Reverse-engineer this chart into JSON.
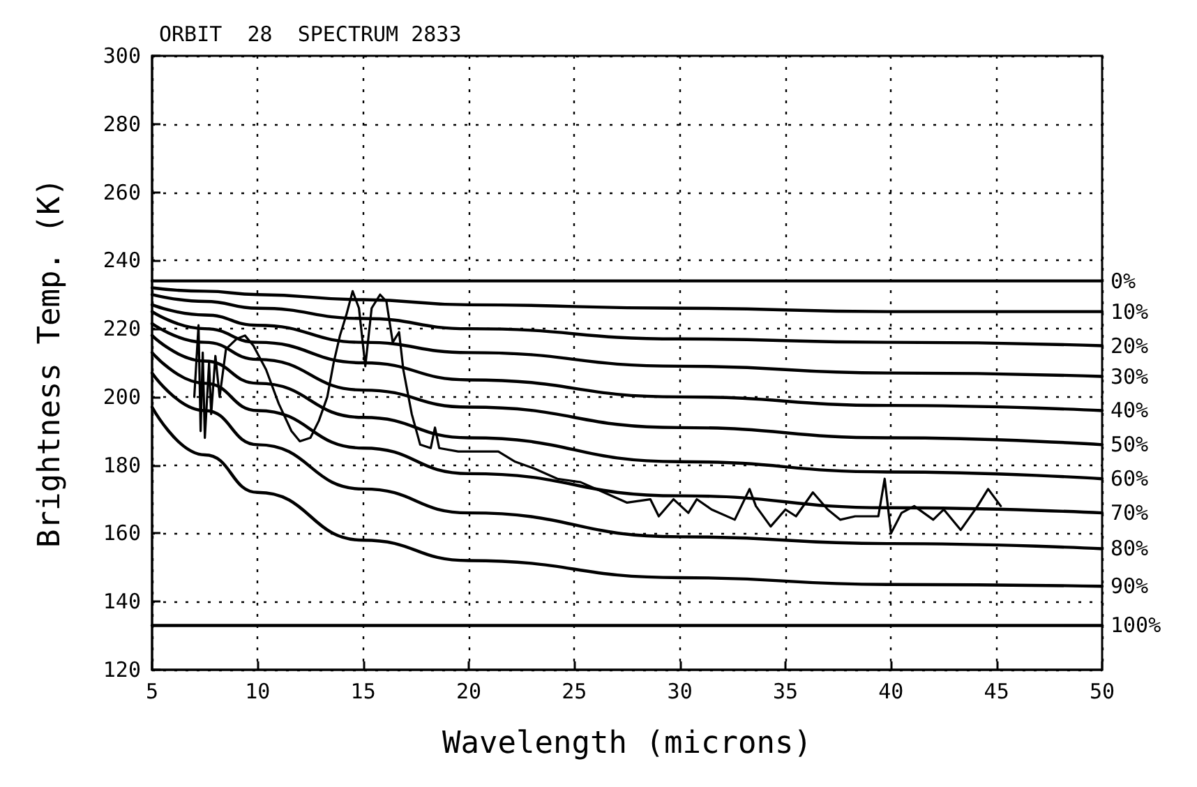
{
  "chart_data": {
    "type": "line",
    "title": "ORBIT  28  SPECTRUM 2833",
    "xlabel": "Wavelength (microns)",
    "ylabel": "Brightness Temp. (K)",
    "xlim": [
      5,
      50
    ],
    "xticks": [
      5,
      10,
      15,
      20,
      25,
      30,
      35,
      40,
      45,
      50
    ],
    "ylim": [
      120,
      300
    ],
    "yticks": [
      120,
      140,
      160,
      180,
      200,
      220,
      240,
      260,
      280,
      300
    ],
    "grid": true,
    "legend": false,
    "marker": "none",
    "line_style": "solid",
    "series": [
      {
        "color": "#000000",
        "x": [
          7.0,
          7.2,
          7.3,
          7.4,
          7.5,
          7.7,
          7.8,
          8.0,
          8.2,
          8.5,
          9.0,
          9.4,
          9.8,
          10.4,
          11.0,
          11.6,
          12.0,
          12.5,
          12.9,
          13.3,
          13.6,
          13.9,
          14.2,
          14.5,
          14.8,
          15.1,
          15.4,
          15.8,
          16.1,
          16.4,
          16.7,
          16.9,
          17.3,
          17.7,
          18.2,
          18.4,
          18.6,
          19.5,
          20.5,
          21.4,
          22.2,
          23.1,
          24.2,
          25.3,
          26.4,
          27.5,
          28.6,
          29.0,
          29.7,
          30.4,
          30.8,
          31.5,
          32.6,
          33.3,
          33.6,
          34.3,
          35.0,
          35.5,
          36.3,
          37.0,
          37.6,
          38.3,
          39.4,
          39.7,
          40.0,
          40.5,
          41.1,
          42.0,
          42.5,
          43.3,
          44.1,
          44.6,
          45.2
        ],
        "values": [
          200,
          221,
          190,
          213,
          188,
          210,
          195,
          212,
          200,
          214,
          217,
          218,
          215,
          208,
          198,
          190,
          187,
          188,
          193,
          200,
          210,
          218,
          224,
          231,
          226,
          209,
          226,
          230,
          228,
          216,
          219,
          208,
          195,
          186,
          185,
          191,
          185,
          184,
          184,
          184,
          181,
          179,
          176,
          175,
          172,
          169,
          170,
          165,
          170,
          166,
          170,
          167,
          164,
          173,
          168,
          162,
          167,
          165,
          172,
          167,
          164,
          165,
          165,
          176,
          160,
          166,
          168,
          164,
          167,
          161,
          168,
          173,
          168
        ]
      },
      {
        "name": "0%",
        "color": "#000000",
        "x": [
          5,
          50
        ],
        "values": [
          234,
          234
        ]
      },
      {
        "name": "10%",
        "color": "#000000",
        "x": [
          5,
          7.5,
          10,
          15,
          20,
          30,
          40,
          50
        ],
        "values": [
          232,
          231,
          230,
          228.5,
          227,
          226,
          225,
          225
        ]
      },
      {
        "name": "20%",
        "color": "#000000",
        "x": [
          5,
          7.5,
          10,
          15,
          20,
          30,
          40,
          50
        ],
        "values": [
          230,
          228,
          226,
          223,
          220,
          217,
          216,
          215
        ]
      },
      {
        "name": "30%",
        "color": "#000000",
        "x": [
          5,
          7.5,
          10,
          15,
          20,
          30,
          40,
          50
        ],
        "values": [
          227,
          224,
          221,
          216,
          213,
          209,
          207,
          206
        ]
      },
      {
        "name": "40%",
        "color": "#000000",
        "x": [
          5,
          7.5,
          10,
          15,
          20,
          30,
          40,
          50
        ],
        "values": [
          225,
          220,
          216,
          210,
          205,
          200,
          197.5,
          196
        ]
      },
      {
        "name": "50%",
        "color": "#000000",
        "x": [
          5,
          7.5,
          10,
          15,
          20,
          30,
          40,
          50
        ],
        "values": [
          221.5,
          216,
          211,
          202,
          197,
          191,
          188,
          186
        ]
      },
      {
        "name": "60%",
        "color": "#000000",
        "x": [
          5,
          7.5,
          10,
          15,
          20,
          30,
          40,
          50
        ],
        "values": [
          218,
          210.5,
          204,
          194,
          188,
          181,
          178,
          176
        ]
      },
      {
        "name": "70%",
        "color": "#000000",
        "x": [
          5,
          7.5,
          10,
          15,
          20,
          30,
          40,
          50
        ],
        "values": [
          213,
          204,
          196,
          185,
          177.5,
          171,
          167.5,
          166
        ]
      },
      {
        "name": "80%",
        "color": "#000000",
        "x": [
          5,
          7.5,
          10,
          15,
          20,
          30,
          40,
          50
        ],
        "values": [
          207,
          196,
          186,
          173,
          166,
          159,
          157,
          155.5
        ]
      },
      {
        "name": "90%",
        "color": "#000000",
        "x": [
          5,
          7.5,
          10,
          15,
          20,
          30,
          40,
          50
        ],
        "values": [
          197,
          183,
          172,
          158,
          152,
          147,
          145,
          144.5
        ]
      },
      {
        "name": "100%",
        "color": "#000000",
        "x": [
          5,
          50
        ],
        "values": [
          133,
          133
        ]
      }
    ]
  }
}
